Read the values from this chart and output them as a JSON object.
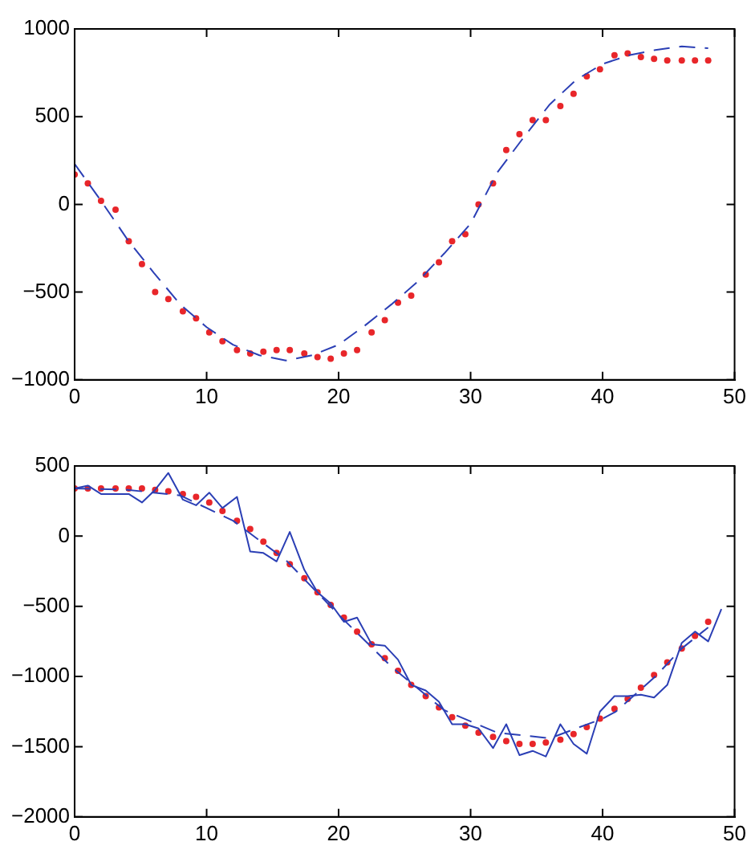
{
  "chart_data": [
    {
      "type": "line",
      "xlim": [
        0,
        50
      ],
      "xticks": [
        0,
        10,
        20,
        30,
        40,
        50
      ],
      "ylim": [
        -1000,
        1000
      ],
      "yticks": [
        -1000,
        -500,
        0,
        500,
        1000
      ],
      "grid": false,
      "legend": false,
      "series": [
        {
          "type": "line",
          "line_style": "dashed",
          "marker": "none",
          "color": "#2b3fb5",
          "x": [
            0,
            2,
            4,
            6,
            8,
            10,
            12,
            14,
            16,
            18,
            20,
            22,
            24,
            26,
            28,
            30,
            32,
            34,
            36,
            38,
            40,
            42,
            44,
            46,
            48
          ],
          "values": [
            230,
            20,
            -200,
            -390,
            -570,
            -700,
            -800,
            -860,
            -890,
            -860,
            -800,
            -690,
            -570,
            -440,
            -280,
            -110,
            180,
            380,
            570,
            710,
            800,
            850,
            880,
            900,
            890
          ]
        },
        {
          "type": "scatter",
          "marker": "circle",
          "color": "#e8262a",
          "x": [
            0,
            1.0,
            2.0,
            3.1,
            4.1,
            5.1,
            6.1,
            7.1,
            8.2,
            9.2,
            10.2,
            11.2,
            12.3,
            13.3,
            14.3,
            15.3,
            16.3,
            17.4,
            18.4,
            19.4,
            20.4,
            21.4,
            22.5,
            23.5,
            24.5,
            25.5,
            26.6,
            27.6,
            28.6,
            29.6,
            30.6,
            31.7,
            32.7,
            33.7,
            34.7,
            35.7,
            36.8,
            37.8,
            38.8,
            39.8,
            40.9,
            41.9,
            42.9,
            43.9,
            44.9,
            46.0,
            47.0,
            48.0
          ],
          "values": [
            170,
            120,
            20,
            -30,
            -210,
            -340,
            -500,
            -540,
            -610,
            -650,
            -730,
            -780,
            -830,
            -850,
            -840,
            -830,
            -830,
            -850,
            -870,
            -880,
            -850,
            -830,
            -730,
            -660,
            -560,
            -520,
            -400,
            -330,
            -210,
            -170,
            0,
            120,
            310,
            400,
            480,
            480,
            560,
            630,
            730,
            770,
            850,
            860,
            840,
            830,
            820,
            820,
            820,
            820
          ]
        }
      ]
    },
    {
      "type": "line",
      "xlim": [
        0,
        50
      ],
      "xticks": [
        0,
        10,
        20,
        30,
        40,
        50
      ],
      "ylim": [
        -2000,
        500
      ],
      "yticks": [
        -2000,
        -1500,
        -1000,
        -500,
        0,
        500
      ],
      "grid": false,
      "legend": false,
      "series": [
        {
          "type": "line",
          "line_style": "solid",
          "marker": "none",
          "color": "#2b3fb5",
          "x": [
            0,
            1.0,
            2.0,
            3.1,
            4.1,
            5.1,
            6.1,
            7.1,
            8.2,
            9.2,
            10.2,
            11.2,
            12.3,
            13.3,
            14.3,
            15.3,
            16.3,
            17.4,
            18.4,
            19.4,
            20.4,
            21.4,
            22.5,
            23.5,
            24.5,
            25.5,
            26.6,
            27.6,
            28.6,
            29.6,
            30.6,
            31.7,
            32.7,
            33.7,
            34.7,
            35.7,
            36.8,
            37.8,
            38.8,
            39.8,
            40.9,
            41.9,
            42.9,
            43.9,
            44.9,
            46.0,
            47.0,
            48.0,
            49.0
          ],
          "values": [
            340,
            360,
            300,
            300,
            300,
            240,
            330,
            450,
            260,
            220,
            310,
            200,
            280,
            -110,
            -120,
            -180,
            30,
            -240,
            -400,
            -480,
            -610,
            -580,
            -770,
            -780,
            -880,
            -1060,
            -1100,
            -1180,
            -1340,
            -1340,
            -1370,
            -1510,
            -1340,
            -1560,
            -1530,
            -1570,
            -1340,
            -1480,
            -1550,
            -1250,
            -1140,
            -1140,
            -1130,
            -1150,
            -1060,
            -760,
            -680,
            -750,
            -520
          ]
        },
        {
          "type": "line",
          "line_style": "dashed",
          "marker": "none",
          "color": "#2b3fb5",
          "x": [
            0,
            4,
            8,
            12,
            16,
            20,
            24,
            28,
            32,
            36,
            40,
            41,
            44,
            46,
            48
          ],
          "values": [
            340,
            330,
            290,
            110,
            -170,
            -560,
            -930,
            -1240,
            -1400,
            -1440,
            -1300,
            -1250,
            -1000,
            -800,
            -650
          ]
        },
        {
          "type": "scatter",
          "marker": "circle",
          "color": "#e8262a",
          "x": [
            0,
            1.0,
            2.0,
            3.1,
            4.1,
            5.1,
            6.1,
            7.1,
            8.2,
            9.2,
            10.2,
            11.2,
            12.3,
            13.3,
            14.3,
            15.3,
            16.3,
            17.4,
            18.4,
            19.4,
            20.4,
            21.4,
            22.5,
            23.5,
            24.5,
            25.5,
            26.6,
            27.6,
            28.6,
            29.6,
            30.6,
            31.7,
            32.7,
            33.7,
            34.7,
            35.7,
            36.8,
            37.8,
            38.8,
            39.8,
            40.9,
            41.9,
            42.9,
            43.9,
            44.9,
            46.0,
            47.0,
            48.0
          ],
          "values": [
            340,
            340,
            340,
            340,
            340,
            340,
            330,
            320,
            300,
            280,
            240,
            180,
            110,
            50,
            -40,
            -120,
            -200,
            -300,
            -400,
            -490,
            -580,
            -680,
            -770,
            -870,
            -960,
            -1060,
            -1140,
            -1220,
            -1290,
            -1350,
            -1400,
            -1430,
            -1460,
            -1480,
            -1480,
            -1470,
            -1450,
            -1410,
            -1360,
            -1300,
            -1230,
            -1160,
            -1080,
            -990,
            -900,
            -800,
            -710,
            -610
          ]
        }
      ]
    }
  ]
}
